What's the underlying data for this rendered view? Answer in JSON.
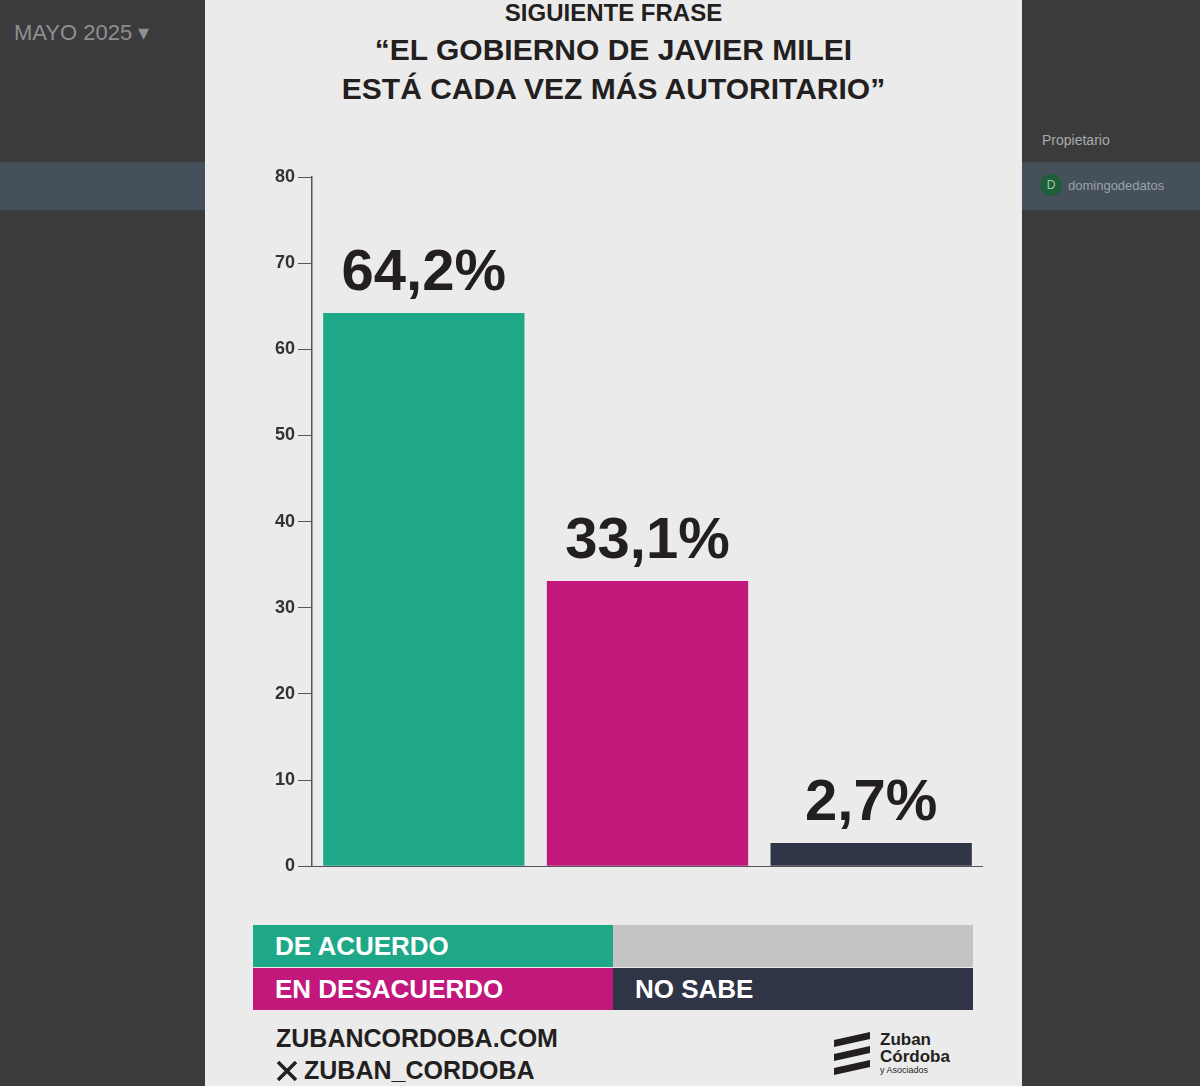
{
  "chart_data": {
    "type": "bar",
    "subtitle": "SIGUIENTE FRASE",
    "title": "“EL GOBIERNO DE JAVIER MILEI ESTÁ CADA VEZ MÁS AUTORITARIO”",
    "categories": [
      "DE ACUERDO",
      "EN DESACUERDO",
      "NO SABE"
    ],
    "values": [
      64.2,
      33.1,
      2.7
    ],
    "value_labels": [
      "64,2%",
      "33,1%",
      "2,7%"
    ],
    "colors": [
      "#1ea887",
      "#c2187c",
      "#2f3547"
    ],
    "ylim": [
      0,
      80
    ],
    "yticks": [
      0,
      10,
      20,
      30,
      40,
      50,
      60,
      70,
      80
    ],
    "grid": false,
    "data_labels": true,
    "tick_labels": "y",
    "legend": "bottom"
  },
  "footer": {
    "website": "ZUBANCORDOBA.COM",
    "social": "ZUBAN_CORDOBA",
    "brand": [
      "Zuban",
      "Córdoba"
    ],
    "brand_sub": "y Asociados"
  },
  "background": {
    "month": "MAYO 2025 ▾",
    "column": "Propietario",
    "avatar": "D",
    "owner": "domingodedatos"
  }
}
